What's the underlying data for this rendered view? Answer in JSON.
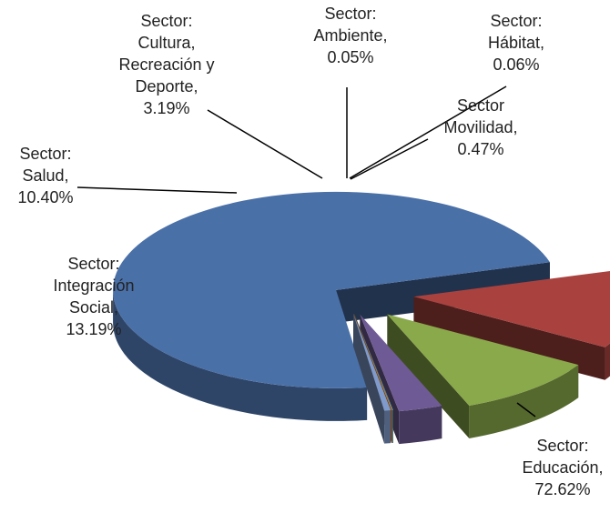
{
  "chart_data": {
    "type": "pie",
    "style": "3d-exploded",
    "slices": [
      {
        "label_lines": [
          "Sector:",
          "Educación,",
          "72.62%"
        ],
        "category": "Sector: Educación",
        "value": 72.62,
        "value_label": "72.62%",
        "color": "#4A70A8"
      },
      {
        "label_lines": [
          "Sector:",
          "Integración",
          "Social,",
          "13.19%"
        ],
        "category": "Sector: Integración Social",
        "value": 13.19,
        "value_label": "13.19%",
        "color": "#A9423E"
      },
      {
        "label_lines": [
          "Sector:",
          "Salud,",
          "10.40%"
        ],
        "category": "Sector: Salud",
        "value": 10.4,
        "value_label": "10.40%",
        "color": "#89A94A"
      },
      {
        "label_lines": [
          "Sector:",
          "Cultura,",
          "Recreación y",
          "Deporte,",
          "3.19%"
        ],
        "category": "Sector: Cultura, Recreación y Deporte",
        "value": 3.19,
        "value_label": "3.19%",
        "color": "#6E5A94"
      },
      {
        "label_lines": [
          "Sector:",
          "Ambiente,",
          "0.05%"
        ],
        "category": "Sector: Ambiente",
        "value": 0.05,
        "value_label": "0.05%",
        "color": "#3E99B7"
      },
      {
        "label_lines": [
          "Sector:",
          "Hábitat,",
          "0.06%"
        ],
        "category": "Sector: Hábitat",
        "value": 0.06,
        "value_label": "0.06%",
        "color": "#E28A3B"
      },
      {
        "label_lines": [
          "Sector",
          "Movilidad,",
          "0.47%"
        ],
        "category": "Sector Movilidad",
        "value": 0.47,
        "value_label": "0.47%",
        "color": "#7F9ACB"
      }
    ],
    "legend": "none",
    "title": ""
  }
}
